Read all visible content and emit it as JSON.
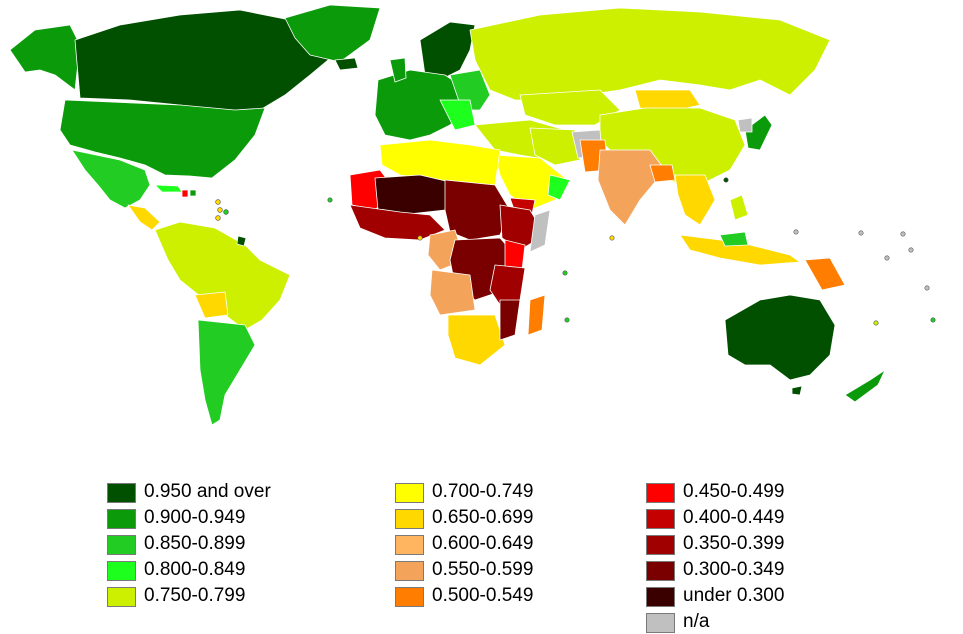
{
  "colors": {
    "v950": "#005000",
    "v900": "#0a9a0a",
    "v850": "#22cc22",
    "v800": "#1dff1d",
    "v750": "#ccf000",
    "v700": "#ffff00",
    "v650": "#ffd800",
    "v600": "#ffb55f",
    "v550": "#f4a35a",
    "v500": "#ff7d00",
    "v450": "#ff0000",
    "v400": "#c40000",
    "v350": "#a00000",
    "v300": "#7a0000",
    "under300": "#3a0000",
    "na": "#c0c0c0",
    "border": "#ffffff"
  },
  "legend": {
    "columns": [
      [
        {
          "color": "#005000",
          "label": "0.950 and over"
        },
        {
          "color": "#0a9a0a",
          "label": "0.900-0.949"
        },
        {
          "color": "#22cc22",
          "label": "0.850-0.899"
        },
        {
          "color": "#1dff1d",
          "label": "0.800-0.849"
        },
        {
          "color": "#ccf000",
          "label": "0.750-0.799"
        }
      ],
      [
        {
          "color": "#ffff00",
          "label": "0.700-0.749"
        },
        {
          "color": "#ffd800",
          "label": "0.650-0.699"
        },
        {
          "color": "#ffb55f",
          "label": "0.600-0.649"
        },
        {
          "color": "#f4a35a",
          "label": "0.550-0.599"
        },
        {
          "color": "#ff7d00",
          "label": "0.500-0.549"
        }
      ],
      [
        {
          "color": "#ff0000",
          "label": "0.450-0.499"
        },
        {
          "color": "#c40000",
          "label": "0.400-0.449"
        },
        {
          "color": "#a00000",
          "label": "0.350-0.399"
        },
        {
          "color": "#7a0000",
          "label": "0.300-0.349"
        },
        {
          "color": "#3a0000",
          "label": "under 0.300"
        },
        {
          "color": "#c0c0c0",
          "label": "n/a"
        }
      ]
    ]
  }
}
